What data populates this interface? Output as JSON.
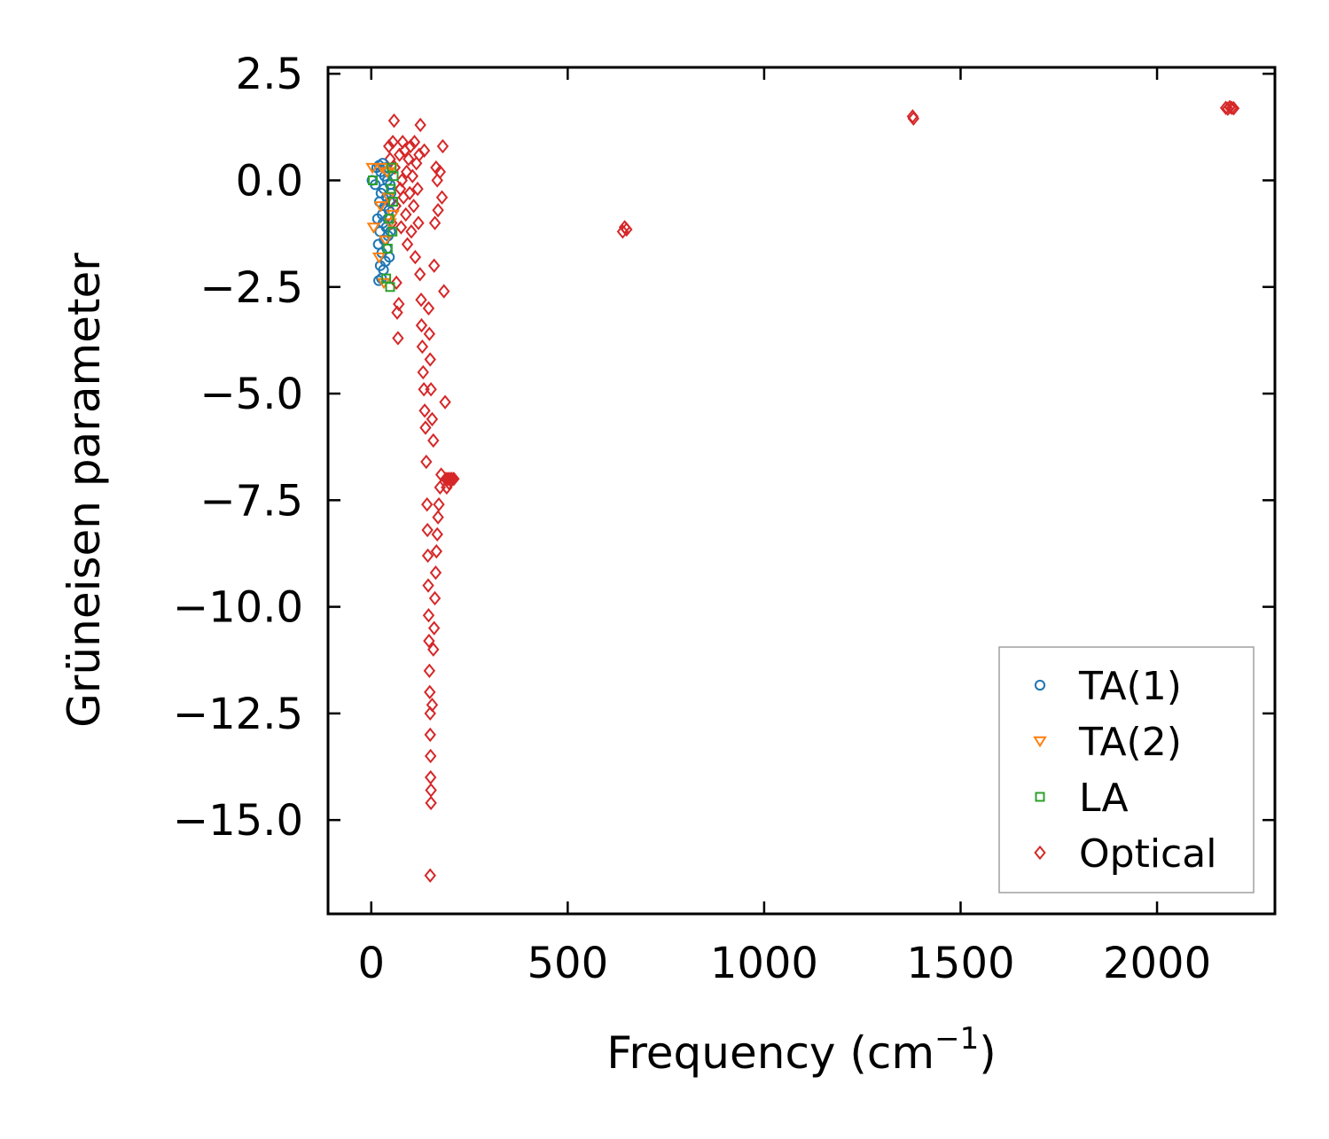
{
  "chart_data": {
    "type": "scatter",
    "title": "",
    "xlabel": "Frequency (cm",
    "xlabel_sup": "−1",
    "xlabel_tail": ")",
    "ylabel": "Grüneisen parameter",
    "xlim": [
      -110,
      2300
    ],
    "ylim": [
      -17.2,
      2.65
    ],
    "xticks": [
      0,
      500,
      1000,
      1500,
      2000
    ],
    "xtick_labels": [
      "0",
      "500",
      "1000",
      "1500",
      "2000"
    ],
    "yticks": [
      2.5,
      0.0,
      -2.5,
      -5.0,
      -7.5,
      -10.0,
      -12.5,
      -15.0
    ],
    "ytick_labels": [
      "2.5",
      "0.0",
      "−2.5",
      "−5.0",
      "−7.5",
      "−10.0",
      "−12.5",
      "−15.0"
    ],
    "grid": false,
    "tick_direction": "in",
    "legend": {
      "placement": "lower-right",
      "entries": [
        "TA(1)",
        "TA(2)",
        "LA",
        "Optical"
      ]
    },
    "series": [
      {
        "name": "TA(1)",
        "marker": "circle",
        "color": "#1f77b4",
        "points": [
          [
            2,
            0.0
          ],
          [
            10,
            -0.1
          ],
          [
            14,
            0.3
          ],
          [
            16,
            -0.9
          ],
          [
            18,
            -1.5
          ],
          [
            19,
            -2.35
          ],
          [
            20,
            0.35
          ],
          [
            21,
            -0.5
          ],
          [
            22,
            -1.2
          ],
          [
            23,
            -2.0
          ],
          [
            24,
            0.2
          ],
          [
            25,
            -0.3
          ],
          [
            26,
            -2.3
          ],
          [
            27,
            -1.7
          ],
          [
            28,
            -0.8
          ],
          [
            29,
            0.4
          ],
          [
            30,
            -1.0
          ],
          [
            31,
            -2.1
          ],
          [
            32,
            -0.2
          ],
          [
            33,
            -1.4
          ],
          [
            34,
            0.1
          ],
          [
            35,
            -0.6
          ],
          [
            36,
            -1.9
          ],
          [
            37,
            0.3
          ],
          [
            38,
            -1.1
          ],
          [
            39,
            -0.4
          ],
          [
            40,
            -1.6
          ],
          [
            41,
            0.0
          ],
          [
            42,
            -0.9
          ],
          [
            43,
            -1.3
          ],
          [
            44,
            0.2
          ],
          [
            45,
            -0.7
          ],
          [
            46,
            -1.8
          ],
          [
            47,
            -0.5
          ],
          [
            48,
            -0.1
          ],
          [
            49,
            -1.2
          ],
          [
            50,
            -0.3
          ]
        ]
      },
      {
        "name": "TA(2)",
        "marker": "triangle-down",
        "color": "#ff7f0e",
        "points": [
          [
            3,
            0.3
          ],
          [
            6,
            -1.1
          ],
          [
            20,
            -1.8
          ],
          [
            24,
            -0.6
          ],
          [
            28,
            0.3
          ],
          [
            32,
            -2.4
          ],
          [
            36,
            -1.4
          ],
          [
            40,
            0.2
          ],
          [
            44,
            -0.4
          ],
          [
            48,
            -1.0
          ],
          [
            52,
            0.3
          ],
          [
            55,
            -0.8
          ]
        ]
      },
      {
        "name": "LA",
        "marker": "square",
        "color": "#2ca02c",
        "points": [
          [
            4,
            0.0
          ],
          [
            38,
            -2.3
          ],
          [
            42,
            -1.6
          ],
          [
            46,
            -0.9
          ],
          [
            48,
            -2.5
          ],
          [
            50,
            -0.2
          ],
          [
            52,
            0.3
          ],
          [
            54,
            -1.2
          ],
          [
            56,
            -0.5
          ],
          [
            57,
            0.1
          ]
        ]
      },
      {
        "name": "Optical",
        "marker": "diamond",
        "color": "#d62728",
        "points": [
          [
            45,
            0.8
          ],
          [
            48,
            0.5
          ],
          [
            50,
            -0.5
          ],
          [
            52,
            -1.0
          ],
          [
            55,
            0.9
          ],
          [
            58,
            1.4
          ],
          [
            60,
            0.3
          ],
          [
            62,
            -0.6
          ],
          [
            64,
            -2.4
          ],
          [
            66,
            -3.1
          ],
          [
            68,
            -3.7
          ],
          [
            70,
            -2.9
          ],
          [
            72,
            0.6
          ],
          [
            74,
            -0.2
          ],
          [
            76,
            -1.1
          ],
          [
            78,
            0.0
          ],
          [
            80,
            0.9
          ],
          [
            82,
            -0.4
          ],
          [
            85,
            0.7
          ],
          [
            88,
            -0.8
          ],
          [
            90,
            0.2
          ],
          [
            92,
            -1.5
          ],
          [
            95,
            0.5
          ],
          [
            98,
            -0.3
          ],
          [
            100,
            0.8
          ],
          [
            102,
            -1.2
          ],
          [
            105,
            0.1
          ],
          [
            108,
            -0.6
          ],
          [
            110,
            0.9
          ],
          [
            112,
            -1.8
          ],
          [
            115,
            0.4
          ],
          [
            118,
            -0.2
          ],
          [
            120,
            -1.0
          ],
          [
            122,
            0.6
          ],
          [
            124,
            -2.2
          ],
          [
            125,
            1.3
          ],
          [
            127,
            -2.8
          ],
          [
            128,
            -3.4
          ],
          [
            130,
            -3.9
          ],
          [
            132,
            -4.5
          ],
          [
            134,
            -4.9
          ],
          [
            135,
            0.7
          ],
          [
            136,
            -5.4
          ],
          [
            138,
            -5.8
          ],
          [
            140,
            -6.6
          ],
          [
            142,
            -7.6
          ],
          [
            143,
            -8.2
          ],
          [
            144,
            -8.8
          ],
          [
            145,
            -9.5
          ],
          [
            146,
            -10.2
          ],
          [
            147,
            -10.8
          ],
          [
            148,
            -11.5
          ],
          [
            149,
            -12.0
          ],
          [
            150,
            -12.5
          ],
          [
            150,
            -13.0
          ],
          [
            151,
            -13.5
          ],
          [
            151,
            -14.0
          ],
          [
            152,
            -14.3
          ],
          [
            152,
            -14.6
          ],
          [
            150,
            -16.3
          ],
          [
            155,
            -12.3
          ],
          [
            158,
            -11.0
          ],
          [
            160,
            -10.5
          ],
          [
            162,
            -9.8
          ],
          [
            164,
            -9.2
          ],
          [
            166,
            -8.7
          ],
          [
            168,
            -8.3
          ],
          [
            170,
            -7.9
          ],
          [
            172,
            -7.6
          ],
          [
            175,
            -7.2
          ],
          [
            178,
            -6.9
          ],
          [
            180,
            -0.4
          ],
          [
            182,
            0.8
          ],
          [
            185,
            -2.6
          ],
          [
            188,
            -5.2
          ],
          [
            190,
            -7.0
          ],
          [
            192,
            -7.2
          ],
          [
            195,
            -7.0
          ],
          [
            198,
            -7.1
          ],
          [
            200,
            -7.0
          ],
          [
            205,
            -7.0
          ],
          [
            210,
            -7.0
          ],
          [
            158,
            -6.1
          ],
          [
            155,
            -5.6
          ],
          [
            152,
            -4.9
          ],
          [
            150,
            -4.2
          ],
          [
            148,
            -3.6
          ],
          [
            146,
            -3.0
          ],
          [
            160,
            -2.0
          ],
          [
            162,
            -1.0
          ],
          [
            165,
            0.3
          ],
          [
            168,
            0.0
          ],
          [
            170,
            -0.7
          ],
          [
            175,
            0.2
          ],
          [
            640,
            -1.2
          ],
          [
            645,
            -1.1
          ],
          [
            650,
            -1.15
          ],
          [
            1378,
            1.5
          ],
          [
            1380,
            1.45
          ],
          [
            2175,
            1.7
          ],
          [
            2180,
            1.68
          ],
          [
            2185,
            1.72
          ],
          [
            2190,
            1.7
          ],
          [
            2195,
            1.69
          ]
        ]
      }
    ]
  }
}
